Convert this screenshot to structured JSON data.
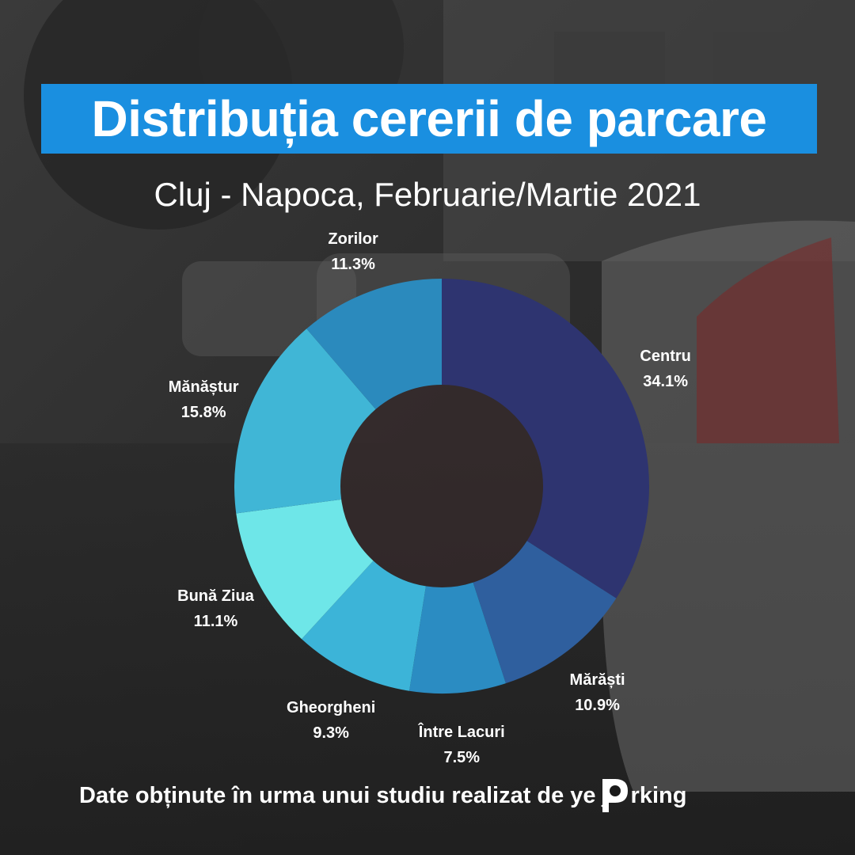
{
  "title": "Distribuția cererii de parcare",
  "subtitle": "Cluj - Napoca, Februarie/Martie 2021",
  "footer": {
    "text": "Date obținute în urma unui studiu realizat de",
    "logo_prefix": "ye",
    "logo_suffix": "rking"
  },
  "colors": {
    "title_bg": "#1a8fe0",
    "text": "#ffffff"
  },
  "chart_data": {
    "type": "pie",
    "donut": true,
    "start_angle_deg": 0,
    "direction": "clockwise",
    "slices": [
      {
        "label": "Centru",
        "value": 34.1,
        "display": "34.1%",
        "color": "#2e3470"
      },
      {
        "label": "Mărăști",
        "value": 10.9,
        "display": "10.9%",
        "color": "#2f5f9e"
      },
      {
        "label": "Între Lacuri",
        "value": 7.5,
        "display": "7.5%",
        "color": "#2b8cc2"
      },
      {
        "label": "Gheorgheni",
        "value": 9.3,
        "display": "9.3%",
        "color": "#3cb4d8"
      },
      {
        "label": "Bună Ziua",
        "value": 11.1,
        "display": "11.1%",
        "color": "#6ee6e8"
      },
      {
        "label": "Mănăștur",
        "value": 15.8,
        "display": "15.8%",
        "color": "#40b6d6"
      },
      {
        "label": "Zorilor",
        "value": 11.3,
        "display": "11.3%",
        "color": "#2b8abd"
      }
    ]
  }
}
